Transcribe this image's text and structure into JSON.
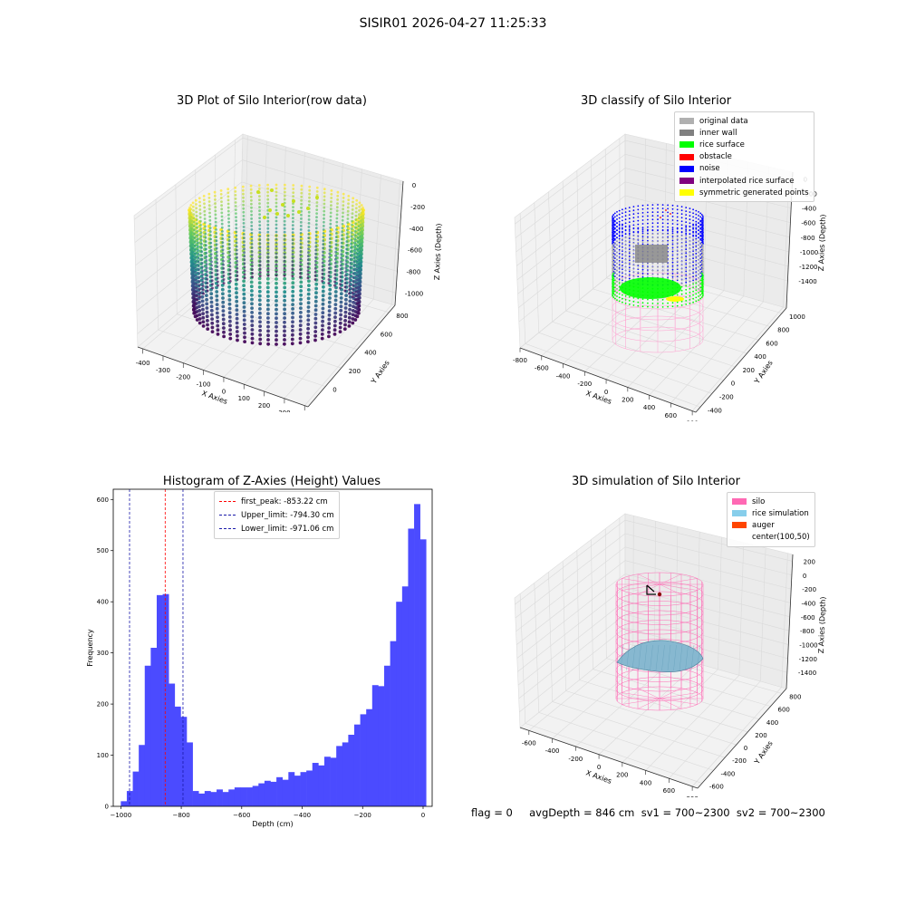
{
  "suptitle": "SISIR01 2026-04-27 11:25:33",
  "footer": "flag = 0     avgDepth = 846 cm  sv1 = 700~2300  sv2 = 700~2300",
  "chart_data": [
    {
      "type": "scatter",
      "panel": "top-left",
      "title": "3D Plot of Silo Interior(row data)",
      "xlabel": "X Axies",
      "ylabel": "Y Axies",
      "zlabel": "Z Axies (Depth)",
      "xticks": [
        "-400",
        "-300",
        "-200",
        "-100",
        "0",
        "100",
        "200",
        "300",
        "400"
      ],
      "yticks": [
        "0",
        "200",
        "400",
        "600",
        "800"
      ],
      "zticks": [
        "0",
        "-200",
        "-400",
        "-600",
        "-800",
        "-1000"
      ],
      "colormap": "viridis",
      "x_range": [
        -450,
        400
      ],
      "y_range": [
        -100,
        900
      ],
      "z_range": [
        -1150,
        0
      ]
    },
    {
      "type": "scatter",
      "panel": "top-right",
      "title": "3D classify of Silo Interior",
      "xlabel": "X Axies",
      "ylabel": "Y Axies",
      "zlabel": "Z Axies (Depth)",
      "xticks": [
        "-800",
        "-600",
        "-400",
        "-200",
        "0",
        "200",
        "400",
        "600",
        "800"
      ],
      "yticks": [
        "-400",
        "-200",
        "0",
        "200",
        "400",
        "600",
        "800",
        "1000"
      ],
      "zticks": [
        "0",
        "-200",
        "-400",
        "-600",
        "-800",
        "-1000",
        "-1200",
        "-1400"
      ],
      "legend": [
        {
          "label": "original data",
          "color": "#b0b0b0"
        },
        {
          "label": "inner wall",
          "color": "#808080"
        },
        {
          "label": "rice surface",
          "color": "#00ff00"
        },
        {
          "label": "obstacle",
          "color": "#ff0000"
        },
        {
          "label": "noise",
          "color": "#0000ff"
        },
        {
          "label": "interpolated rice surface",
          "color": "#800080"
        },
        {
          "label": "symmetric generated points",
          "color": "#ffff00"
        }
      ]
    },
    {
      "type": "bar",
      "panel": "bottom-left",
      "title": "Histogram of Z-Axies (Height) Values",
      "xlabel": "Depth (cm)",
      "ylabel": "Frequency",
      "xlim": [
        -1025,
        30
      ],
      "ylim": [
        0,
        620
      ],
      "xticks": [
        -1000,
        -800,
        -600,
        -400,
        -200,
        0
      ],
      "xtick_labels": [
        "−1000",
        "−800",
        "−600",
        "−400",
        "−200",
        "0"
      ],
      "yticks": [
        0,
        100,
        200,
        300,
        400,
        500,
        600
      ],
      "bin_start": -1000,
      "bin_width": 19.8,
      "values": [
        10,
        30,
        68,
        120,
        275,
        310,
        413,
        415,
        240,
        195,
        175,
        125,
        30,
        25,
        30,
        28,
        33,
        28,
        33,
        37,
        37,
        37,
        40,
        45,
        50,
        48,
        57,
        52,
        67,
        60,
        67,
        70,
        85,
        80,
        97,
        95,
        118,
        125,
        140,
        160,
        180,
        190,
        237,
        235,
        275,
        323,
        400,
        430,
        543,
        591,
        522
      ],
      "bar_color": "#4b4bff",
      "vlines": [
        {
          "x": -853.22,
          "label": "first_peak: -853.22 cm",
          "color": "#ff0000"
        },
        {
          "x": -794.3,
          "label": "Upper_limit: -794.30 cm",
          "color": "#1a1aaa"
        },
        {
          "x": -971.06,
          "label": "Lower_limit: -971.06 cm",
          "color": "#1a1aaa"
        }
      ]
    },
    {
      "type": "scatter",
      "panel": "bottom-right",
      "title": "3D simulation of Silo Interior",
      "xlabel": "X Axies",
      "ylabel": "Y Axies",
      "zlabel": "Z Axies (Depth)",
      "xticks": [
        "-600",
        "-400",
        "-200",
        "0",
        "200",
        "400",
        "600",
        "800"
      ],
      "yticks": [
        "-600",
        "-400",
        "-200",
        "0",
        "200",
        "400",
        "600",
        "800"
      ],
      "zticks": [
        "200",
        "0",
        "-200",
        "-400",
        "-600",
        "-800",
        "-1000",
        "-1200",
        "-1400"
      ],
      "legend": [
        {
          "label": "silo",
          "color": "#ff69b4"
        },
        {
          "label": "rice simulation",
          "color": "#87ceeb"
        },
        {
          "label": "auger",
          "color": "#ff4500"
        },
        {
          "label": "center(100,50)",
          "color": ""
        }
      ]
    }
  ]
}
